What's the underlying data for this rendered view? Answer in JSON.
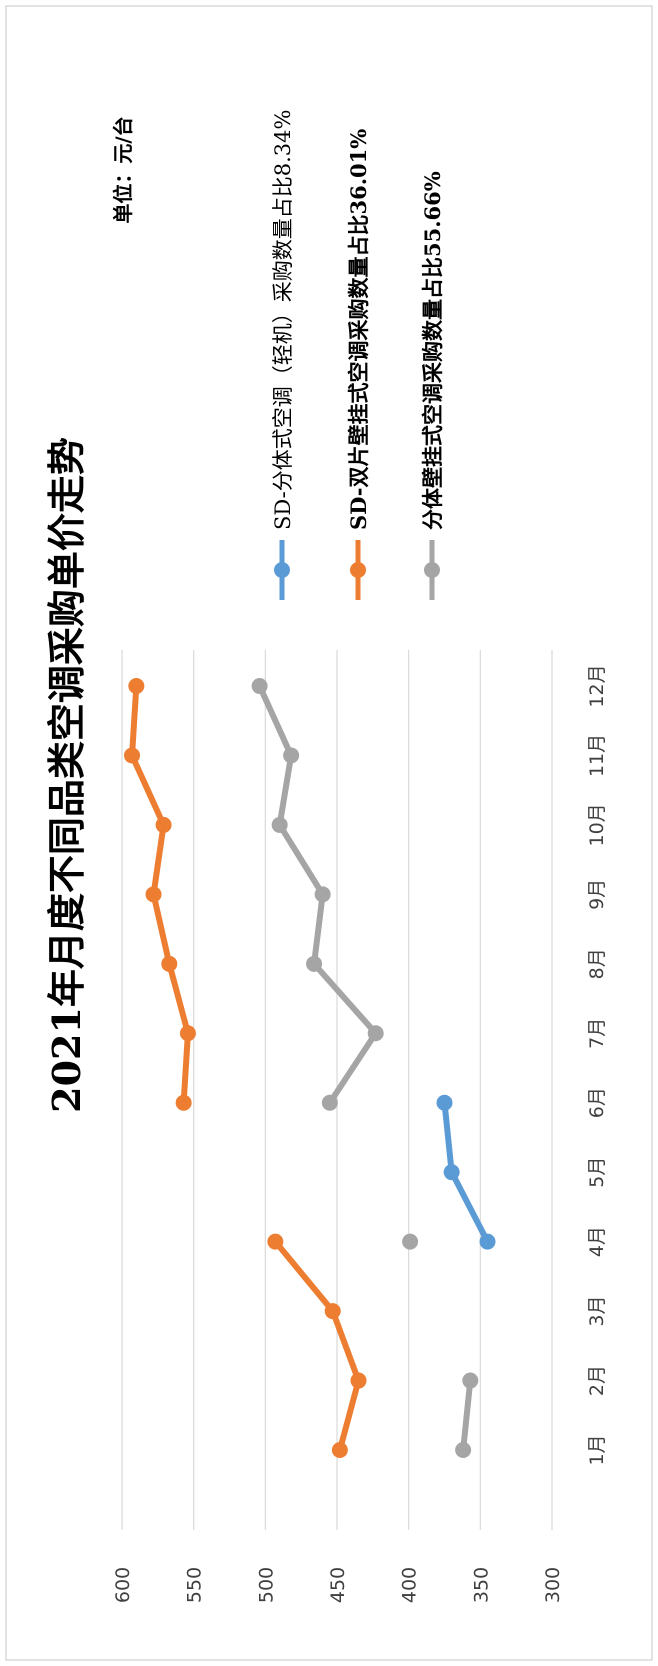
{
  "chart_data": {
    "type": "line",
    "title": "2021年月度不同品类空调采购单价走势",
    "unit_label": "单位：元/台",
    "categories": [
      "1月",
      "2月",
      "3月",
      "4月",
      "5月",
      "6月",
      "7月",
      "8月",
      "9月",
      "10月",
      "11月",
      "12月"
    ],
    "ylim": [
      300,
      600
    ],
    "yticks": [
      300,
      350,
      400,
      450,
      500,
      550,
      600
    ],
    "grid": true,
    "legend_position": "right",
    "series": [
      {
        "name": "SD-分体式空调（轻机）采购数量占比8.34%",
        "color": "#5B9BD5",
        "values": [
          null,
          null,
          null,
          345,
          370,
          375,
          null,
          null,
          null,
          null,
          null,
          null
        ]
      },
      {
        "name": "SD-双片壁挂式空调采购数量占比36.01%",
        "color": "#ED7D31",
        "values": [
          448,
          435,
          453,
          493,
          null,
          557,
          554,
          567,
          578,
          571,
          593,
          590
        ]
      },
      {
        "name": "分体壁挂式空调采购数量占比55.66%",
        "color": "#A5A5A5",
        "values": [
          362,
          357,
          null,
          399,
          null,
          455,
          423,
          466,
          460,
          490,
          482,
          504
        ]
      }
    ]
  }
}
